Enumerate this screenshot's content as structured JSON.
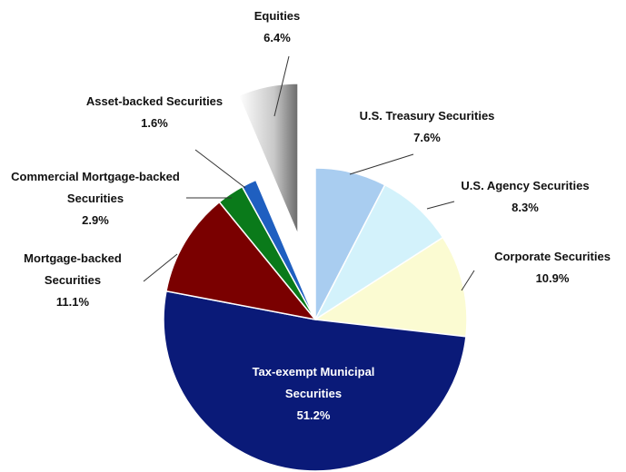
{
  "chart_data": {
    "type": "pie",
    "categories": [
      "U.S. Treasury Securities",
      "U.S. Agency Securities",
      "Corporate Securities",
      "Tax-exempt Municipal Securities",
      "Mortgage-backed Securities",
      "Commercial Mortgage-backed Securities",
      "Asset-backed Securities",
      "Equities"
    ],
    "values": [
      7.6,
      8.3,
      10.9,
      51.2,
      11.1,
      2.9,
      1.6,
      6.4
    ],
    "value_labels": [
      "7.6%",
      "8.3%",
      "10.9%",
      "51.2%",
      "11.1%",
      "2.9%",
      "1.6%",
      "6.4%"
    ],
    "colors": [
      "#a9cdf0",
      "#d3f2fb",
      "#fbfbd2",
      "#0a1a78",
      "#7a0000",
      "#0a7a1a",
      "#1f5fc0",
      "#9a9a9a"
    ],
    "exploded": "Equities"
  }
}
